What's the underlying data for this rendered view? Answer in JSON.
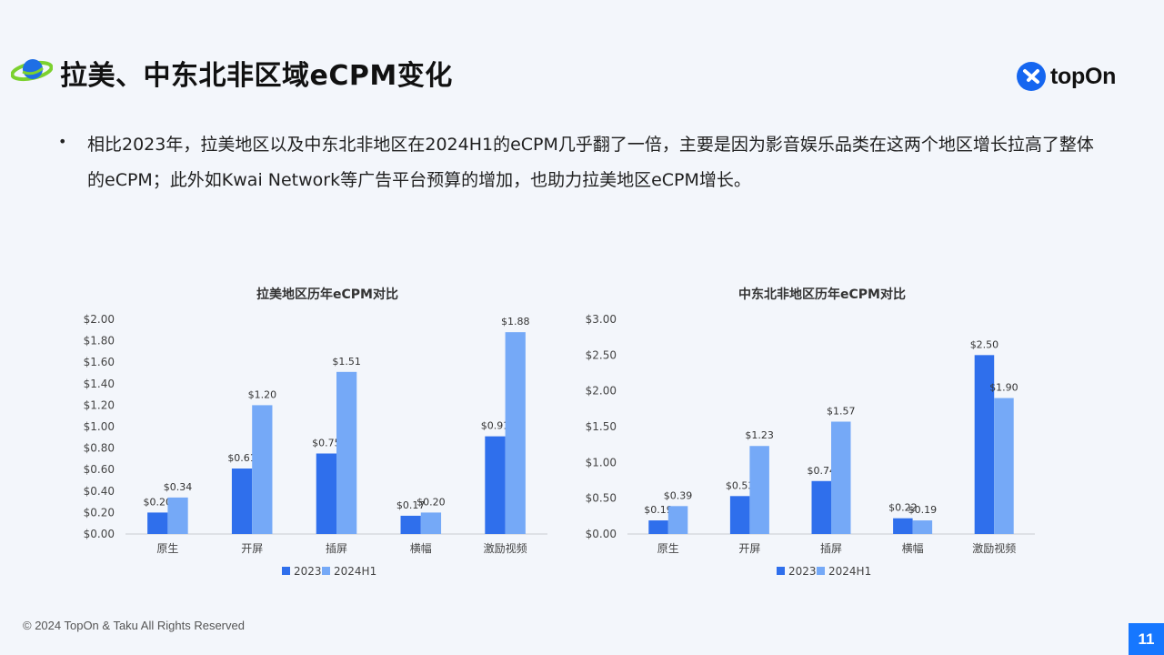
{
  "header": {
    "title": "拉美、中东北非区域eCPM变化",
    "brand": "topOn",
    "icons": {
      "title_icon": "planet-icon",
      "brand_icon": "topon-logo-icon"
    }
  },
  "bullet": {
    "text": "相比2023年，拉美地区以及中东北非地区在2024H1的eCPM几乎翻了一倍，主要是因为影音娱乐品类在这两个地区增长拉高了整体的eCPM；此外如Kwai Network等广告平台预算的增加，也助力拉美地区eCPM增长。"
  },
  "colors": {
    "series_2023": "#2f6fec",
    "series_2024H1": "#75a9f7",
    "accent": "#1677ff"
  },
  "chart_data": [
    {
      "type": "bar",
      "title": "拉美地区历年eCPM对比",
      "categories": [
        "原生",
        "开屏",
        "插屏",
        "横幅",
        "激励视频"
      ],
      "series": [
        {
          "name": "2023",
          "values": [
            0.2,
            0.61,
            0.75,
            0.17,
            0.91
          ],
          "labels": [
            "$0.20",
            "$0.61",
            "$0.75",
            "$0.17",
            "$0.91"
          ]
        },
        {
          "name": "2024H1",
          "values": [
            0.34,
            1.2,
            1.51,
            0.2,
            1.88
          ],
          "labels": [
            "$0.34",
            "$1.20",
            "$1.51",
            "$0.20",
            "$1.88"
          ]
        }
      ],
      "ylim": [
        0,
        2.0
      ],
      "yticks": [
        "$0.00",
        "$0.20",
        "$0.40",
        "$0.60",
        "$0.80",
        "$1.00",
        "$1.20",
        "$1.40",
        "$1.60",
        "$1.80",
        "$2.00"
      ],
      "legend": "bottom",
      "grid": false
    },
    {
      "type": "bar",
      "title": "中东北非地区历年eCPM对比",
      "categories": [
        "原生",
        "开屏",
        "插屏",
        "横幅",
        "激励视频"
      ],
      "series": [
        {
          "name": "2023",
          "values": [
            0.19,
            0.53,
            0.74,
            0.22,
            2.5
          ],
          "labels": [
            "$0.19",
            "$0.53",
            "$0.74",
            "$0.22",
            "$2.50"
          ]
        },
        {
          "name": "2024H1",
          "values": [
            0.39,
            1.23,
            1.57,
            0.19,
            1.9
          ],
          "labels": [
            "$0.39",
            "$1.23",
            "$1.57",
            "$0.19",
            "$1.90"
          ]
        }
      ],
      "ylim": [
        0,
        3.0
      ],
      "yticks": [
        "$0.00",
        "$0.50",
        "$1.00",
        "$1.50",
        "$2.00",
        "$2.50",
        "$3.00"
      ],
      "legend": "bottom",
      "grid": false
    }
  ],
  "footer": {
    "copyright": "© 2024 TopOn & Taku All Rights Reserved",
    "page_number": "11"
  }
}
